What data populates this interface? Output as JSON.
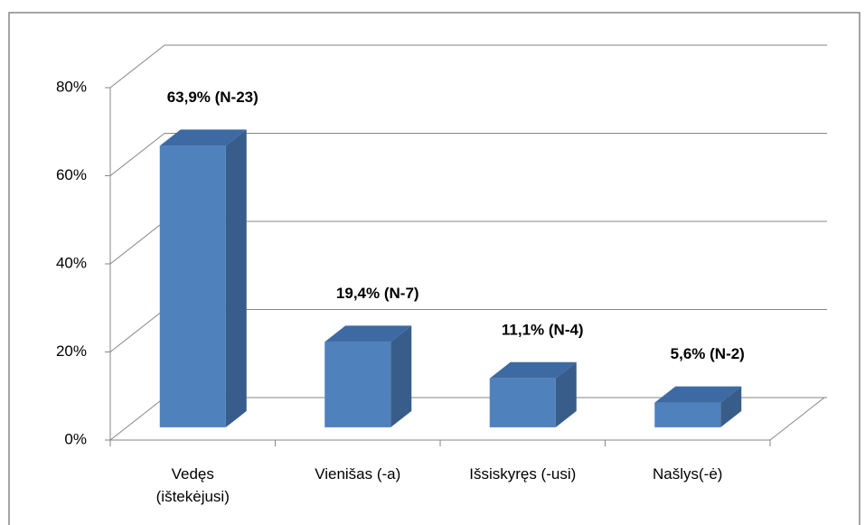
{
  "chart_data": {
    "type": "bar3d",
    "categories": [
      "Vedęs\n(ištekėjusi)",
      "Vienišas (-a)",
      "Išsiskyręs (-usi)",
      "Našlys(-ė)"
    ],
    "values": [
      63.9,
      19.4,
      11.1,
      5.6
    ],
    "value_labels": [
      "63,9% (N-23)",
      "19,4% (N-7)",
      "11,1% (N-4)",
      "5,6% (N-2)"
    ],
    "color": "#4f81bd",
    "ylim": [
      0,
      80
    ],
    "yticks": [
      {
        "value": 0,
        "label": "0%"
      },
      {
        "value": 20,
        "label": "20%"
      },
      {
        "value": 40,
        "label": "40%"
      },
      {
        "value": 60,
        "label": "60%"
      },
      {
        "value": 80,
        "label": "80%"
      }
    ],
    "grid": true
  }
}
